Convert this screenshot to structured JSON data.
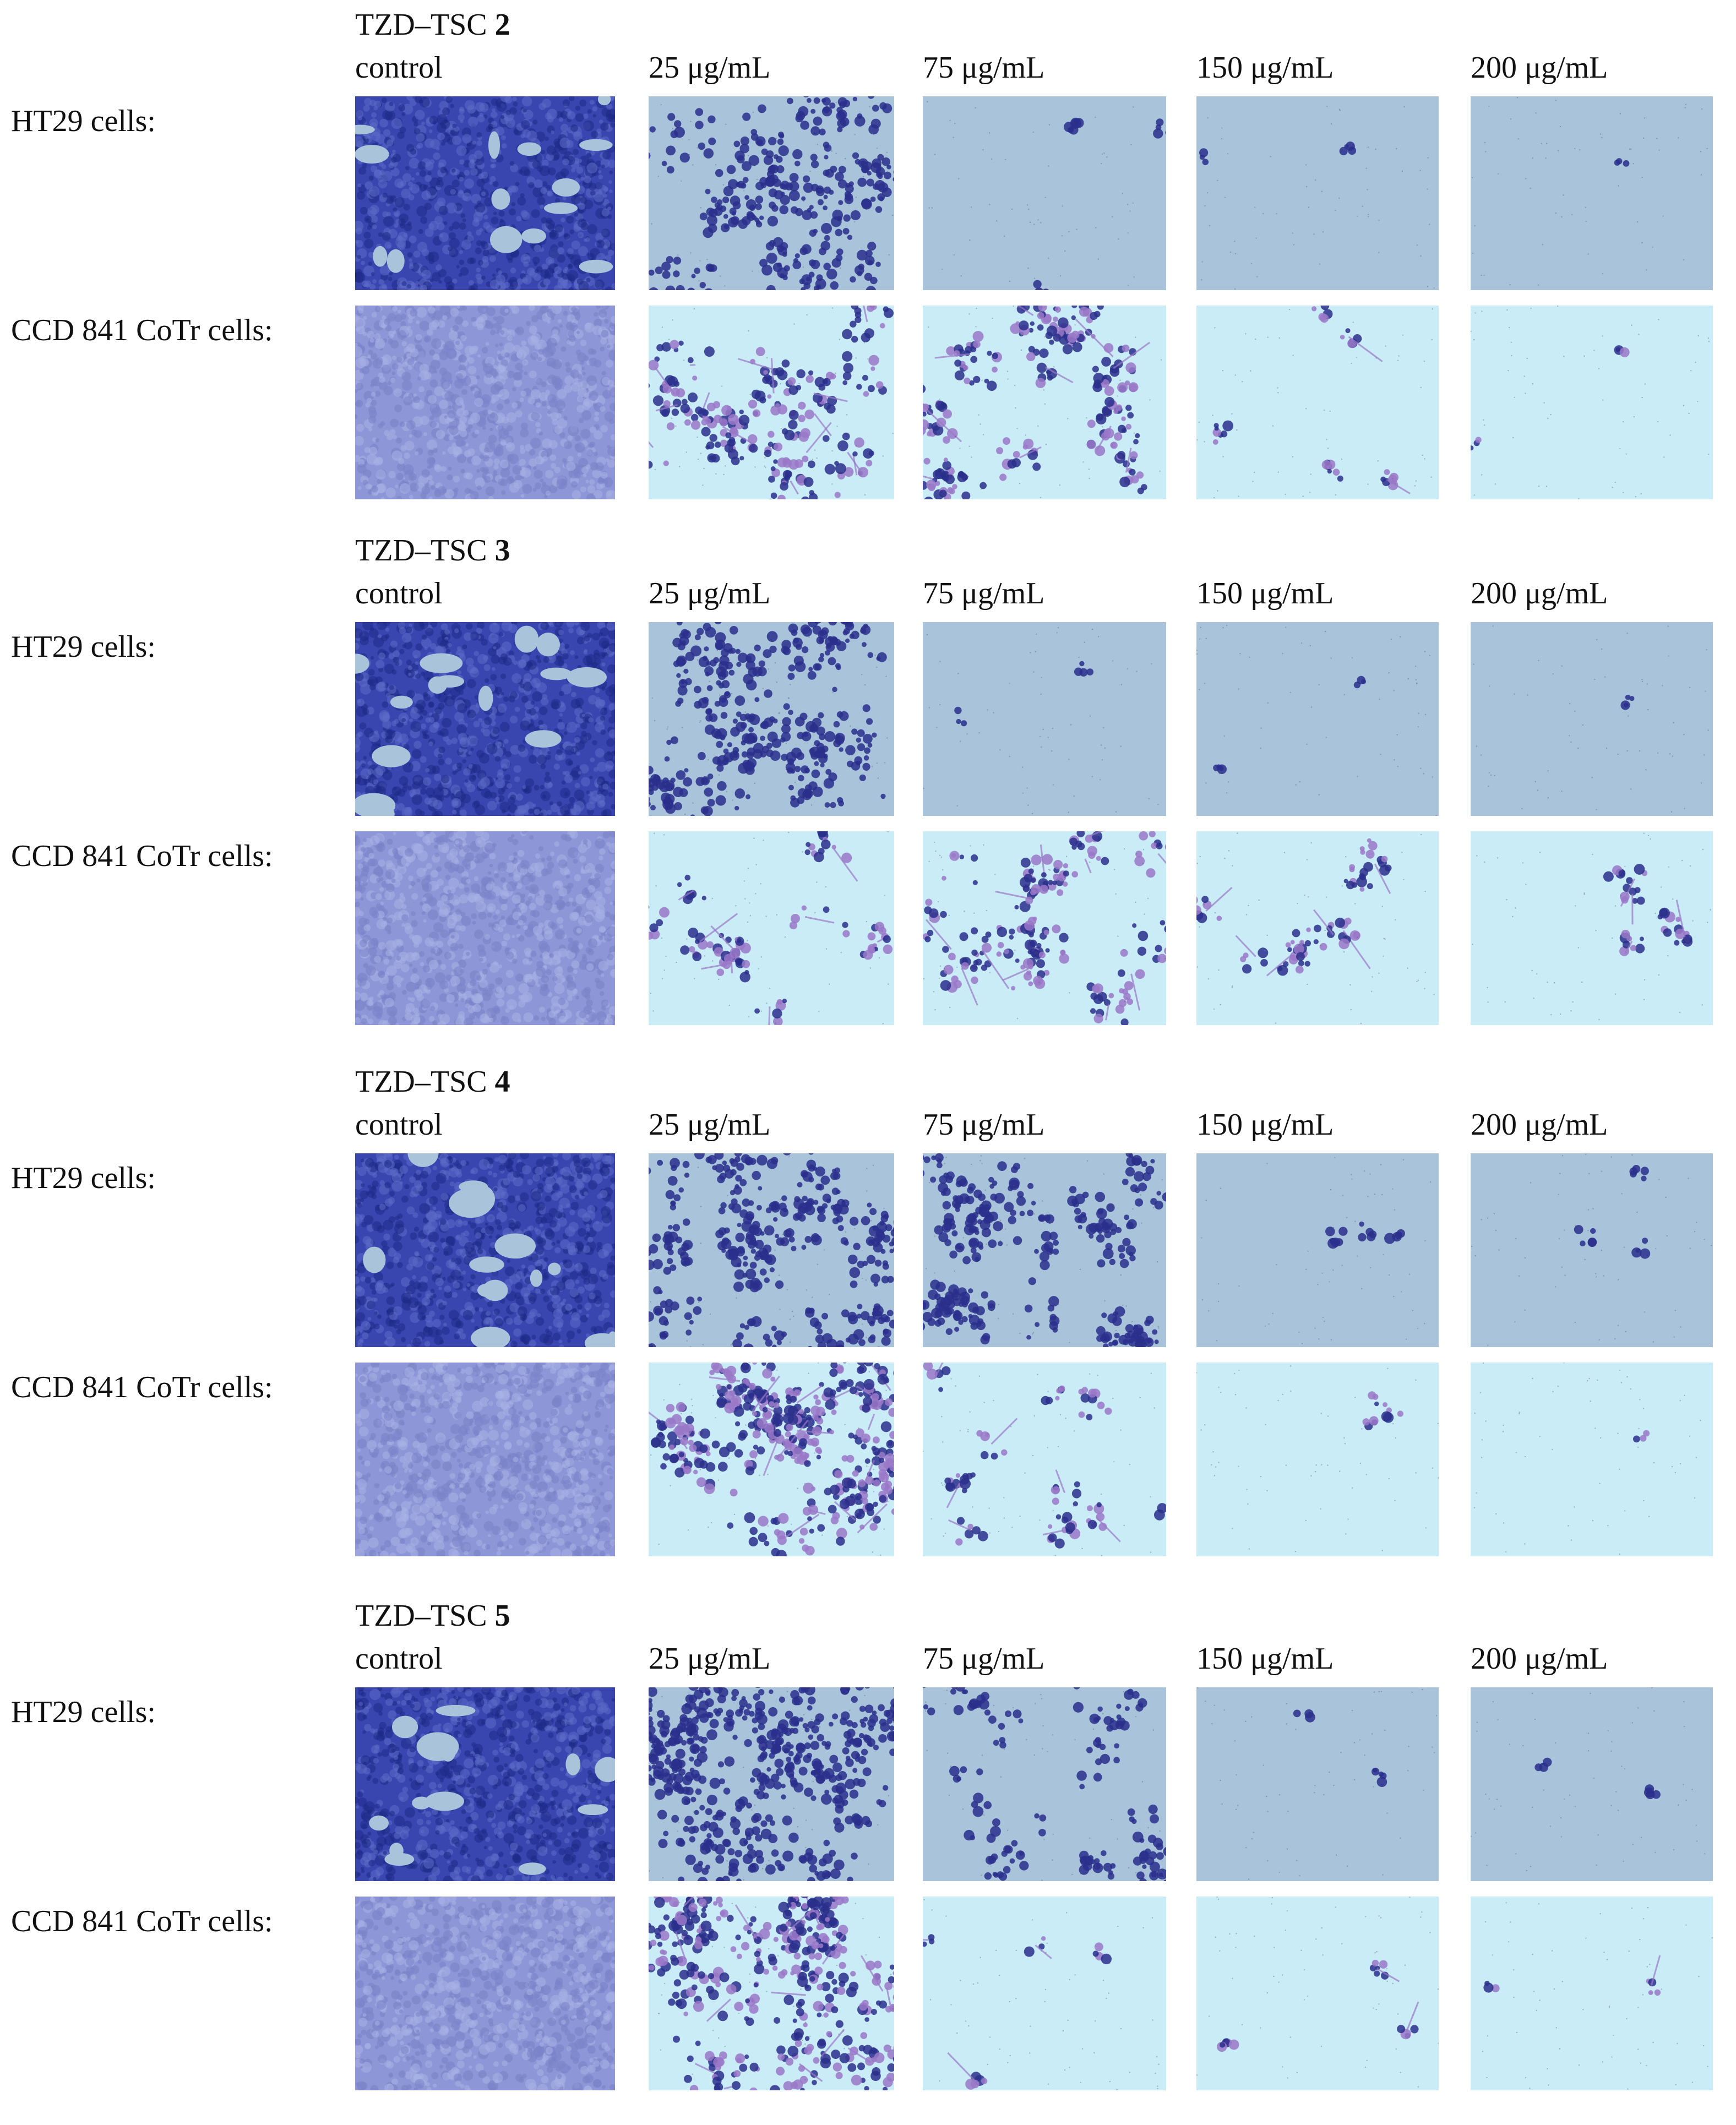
{
  "blocks": [
    {
      "compound_prefix": "TZD–TSC",
      "compound_number": "2",
      "columns": [
        "control",
        "25 μg/mL",
        "75 μg/mL",
        "150 μg/mL",
        "200 μg/mL"
      ],
      "rows": [
        {
          "label": "HT29 cells:",
          "density": [
            1.0,
            0.6,
            0.08,
            0.05,
            0.02
          ],
          "stain": "blue"
        },
        {
          "label": "CCD 841 CoTr cells:",
          "density": [
            1.0,
            0.5,
            0.45,
            0.12,
            0.04
          ],
          "stain": "light"
        }
      ]
    },
    {
      "compound_prefix": "TZD–TSC",
      "compound_number": "3",
      "columns": [
        "control",
        "25 μg/mL",
        "75 μg/mL",
        "150 μg/mL",
        "200 μg/mL"
      ],
      "rows": [
        {
          "label": "HT29 cells:",
          "density": [
            1.0,
            0.65,
            0.06,
            0.05,
            0.02
          ],
          "stain": "blue"
        },
        {
          "label": "CCD 841 CoTr cells:",
          "density": [
            1.0,
            0.3,
            0.45,
            0.25,
            0.15
          ],
          "stain": "light"
        }
      ]
    },
    {
      "compound_prefix": "TZD–TSC",
      "compound_number": "4",
      "columns": [
        "control",
        "25 μg/mL",
        "75 μg/mL",
        "150 μg/mL",
        "200 μg/mL"
      ],
      "rows": [
        {
          "label": "HT29 cells:",
          "density": [
            1.0,
            0.6,
            0.55,
            0.08,
            0.08
          ],
          "stain": "blue"
        },
        {
          "label": "CCD 841 CoTr cells:",
          "density": [
            1.0,
            0.7,
            0.25,
            0.08,
            0.03
          ],
          "stain": "light"
        }
      ]
    },
    {
      "compound_prefix": "TZD–TSC",
      "compound_number": "5",
      "columns": [
        "control",
        "25 μg/mL",
        "75 μg/mL",
        "150 μg/mL",
        "200 μg/mL"
      ],
      "rows": [
        {
          "label": "HT29 cells:",
          "density": [
            1.0,
            0.75,
            0.4,
            0.06,
            0.04
          ],
          "stain": "blue"
        },
        {
          "label": "CCD 841 CoTr cells:",
          "density": [
            1.0,
            0.65,
            0.1,
            0.08,
            0.04
          ],
          "stain": "light"
        }
      ]
    }
  ],
  "colors": {
    "bg_blue_stain": "#a9c4da",
    "bg_light_stain": "#c9ecf6",
    "cell_dark": "#2a2f8c",
    "cell_violet": "#9a78c8",
    "confluent_blue": "#3a46b0",
    "confluent_light": "#8d96d6"
  }
}
